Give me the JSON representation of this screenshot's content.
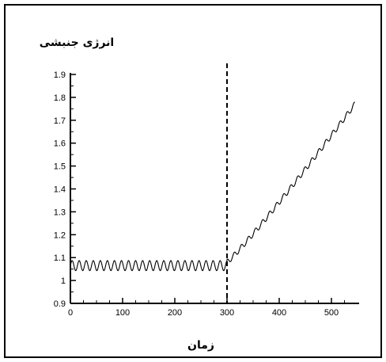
{
  "chart_data": {
    "type": "line",
    "title": "",
    "ylabel": "انرژی جنبشی",
    "xlabel": "زمان",
    "xlim": [
      0,
      550
    ],
    "ylim": [
      0.9,
      1.9
    ],
    "x_ticks": [
      0,
      100,
      200,
      300,
      400,
      500
    ],
    "y_ticks": [
      0.9,
      1,
      1.1,
      1.2,
      1.3,
      1.4,
      1.5,
      1.6,
      1.7,
      1.8,
      1.9
    ],
    "y_tick_labels": [
      "0.9",
      "1",
      "1.1",
      "1.2",
      "1.3",
      "1.4",
      "1.5",
      "1.6",
      "1.7",
      "1.8",
      "1.9"
    ],
    "grid": false,
    "marker_line": {
      "x": 300,
      "style": "dashed"
    },
    "series": [
      {
        "segments": [
          {
            "x_from": 0,
            "x_to": 300,
            "baseline": 1.065,
            "oscillation_amplitude": 0.022,
            "oscillation_period": 13.5
          },
          {
            "x_from": 300,
            "x_to": 545,
            "start": 1.08,
            "end": 1.77,
            "oscillation_amplitude": 0.012,
            "oscillation_period": 13.5
          }
        ]
      }
    ]
  }
}
